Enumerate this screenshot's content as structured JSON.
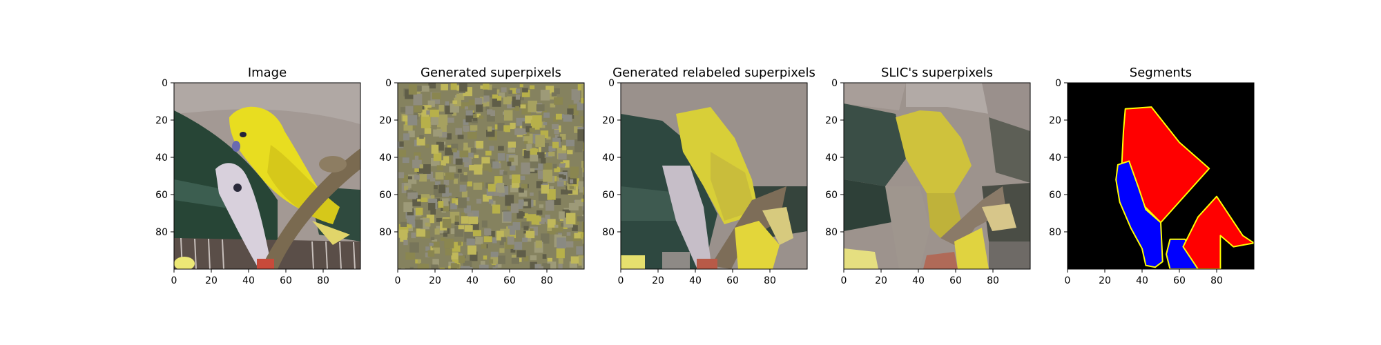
{
  "figure": {
    "panel_count": 5
  },
  "chart_data": [
    {
      "type": "image",
      "title": "Image",
      "xlim": [
        0,
        100
      ],
      "ylim": [
        100,
        0
      ],
      "xticks": [
        0,
        20,
        40,
        60,
        80
      ],
      "yticks": [
        0,
        20,
        40,
        60,
        80
      ],
      "content": "photo of a yellow budgerigar perched on a branch next to a white/lilac budgerigar",
      "colors": {
        "background": "#9e948f",
        "cage_green": "#2b4a3b",
        "bird_yellow": "#e6dc2a",
        "branch": "#7b6a52",
        "white_bird": "#d8d0dc"
      }
    },
    {
      "type": "image",
      "title": "Generated superpixels",
      "xlim": [
        0,
        100
      ],
      "ylim": [
        100,
        0
      ],
      "xticks": [
        0,
        20,
        40,
        60,
        80
      ],
      "yticks": [
        0,
        20,
        40,
        60,
        80
      ],
      "content": "random speckled mosaic of small olive, grey and yellow superpixels",
      "colors": {
        "olive": "#8a8650",
        "grey": "#8f8c7e",
        "yellow": "#b7b04a",
        "dark": "#5f5d48"
      }
    },
    {
      "type": "image",
      "title": "Generated relabeled superpixels",
      "xlim": [
        0,
        100
      ],
      "ylim": [
        100,
        0
      ],
      "xticks": [
        0,
        20,
        40,
        60,
        80
      ],
      "yticks": [
        0,
        20,
        40,
        60,
        80
      ],
      "content": "blocky superpixel reconstruction of the bird photo",
      "colors": {
        "background": "#9a918c",
        "cage_green": "#2e4840",
        "bird_yellow": "#dcd23a",
        "branch": "#7a6c58"
      }
    },
    {
      "type": "image",
      "title": "SLIC's superpixels",
      "xlim": [
        0,
        100
      ],
      "ylim": [
        100,
        0
      ],
      "xticks": [
        0,
        20,
        40,
        60,
        80
      ],
      "yticks": [
        0,
        20,
        40,
        60,
        80
      ],
      "content": "SLIC superpixel mean-colour regions of the bird photo",
      "colors": {
        "background": "#9a908a",
        "cage_green": "#3a4e46",
        "bird_yellow": "#cfc23c",
        "branch": "#8a7a68"
      }
    },
    {
      "type": "segmentation",
      "title": "Segments",
      "xlim": [
        0,
        100
      ],
      "ylim": [
        100,
        0
      ],
      "xticks": [
        0,
        20,
        40,
        60,
        80
      ],
      "yticks": [
        0,
        20,
        40,
        60,
        80
      ],
      "segments": [
        {
          "label": "background",
          "color": "#000000"
        },
        {
          "label": "segment-red-top",
          "color": "#ff0000",
          "polygon": [
            [
              31,
              14
            ],
            [
              45,
              13
            ],
            [
              60,
              32
            ],
            [
              76,
              46
            ],
            [
              50,
              75
            ],
            [
              33,
              58
            ],
            [
              29,
              46
            ],
            [
              30,
              26
            ]
          ]
        },
        {
          "label": "segment-blue",
          "color": "#0000ff",
          "polygon": [
            [
              27,
              44
            ],
            [
              33,
              42
            ],
            [
              38,
              56
            ],
            [
              42,
              68
            ],
            [
              50,
              75
            ],
            [
              51,
              96
            ],
            [
              47,
              99
            ],
            [
              42,
              98
            ],
            [
              40,
              89
            ],
            [
              34,
              78
            ],
            [
              28,
              64
            ],
            [
              26,
              52
            ]
          ]
        },
        {
          "label": "segment-blue-lower",
          "color": "#0000ff",
          "polygon": [
            [
              55,
              84
            ],
            [
              63,
              84
            ],
            [
              70,
              96
            ],
            [
              70,
              100
            ],
            [
              55,
              100
            ],
            [
              53,
              92
            ]
          ]
        },
        {
          "label": "segment-red-right",
          "color": "#ff0000",
          "polygon": [
            [
              70,
              72
            ],
            [
              80,
              61
            ],
            [
              94,
              82
            ],
            [
              100,
              86
            ],
            [
              89,
              88
            ],
            [
              82,
              82
            ],
            [
              82,
              100
            ],
            [
              70,
              100
            ],
            [
              62,
              88
            ]
          ]
        }
      ],
      "outline_color": "#ffff00"
    }
  ]
}
